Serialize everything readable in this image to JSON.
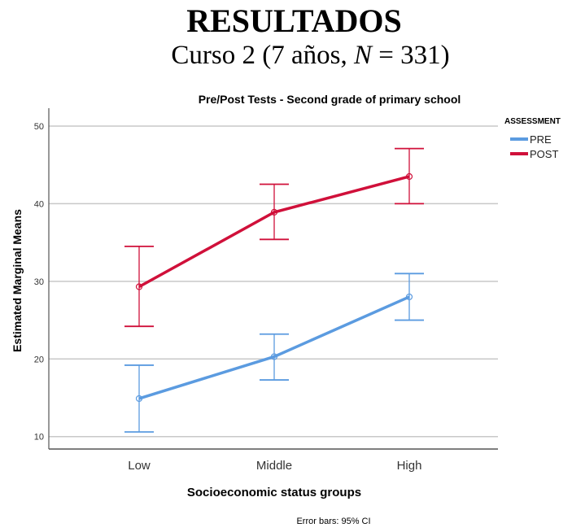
{
  "heading": {
    "title": "RESULTADOS",
    "subtitle_pre": "Curso 2 (7 años, ",
    "subtitle_n": "N",
    "subtitle_post": " = 331)"
  },
  "chart_data": {
    "type": "line",
    "title": "Pre/Post Tests - Second grade of primary school",
    "xlabel": "Socioeconomic status groups",
    "ylabel": "Estimated Marginal Means",
    "categories": [
      "Low",
      "Middle",
      "High"
    ],
    "yticks": [
      10,
      20,
      30,
      40,
      50
    ],
    "ylim": [
      8.4,
      52.3
    ],
    "grid": true,
    "legend": {
      "title": "ASSESSMENT",
      "placement": "top-right"
    },
    "footnote": "Error bars: 95% CI",
    "series": [
      {
        "name": "PRE",
        "color": "#5b9be0",
        "values": [
          14.9,
          20.3,
          28.0
        ],
        "ci_low": [
          10.6,
          17.3,
          25.0
        ],
        "ci_high": [
          19.2,
          23.2,
          31.0
        ]
      },
      {
        "name": "POST",
        "color": "#d0103a",
        "values": [
          29.3,
          38.9,
          43.5
        ],
        "ci_low": [
          24.2,
          35.4,
          40.0
        ],
        "ci_high": [
          34.5,
          42.5,
          47.1
        ]
      }
    ]
  }
}
